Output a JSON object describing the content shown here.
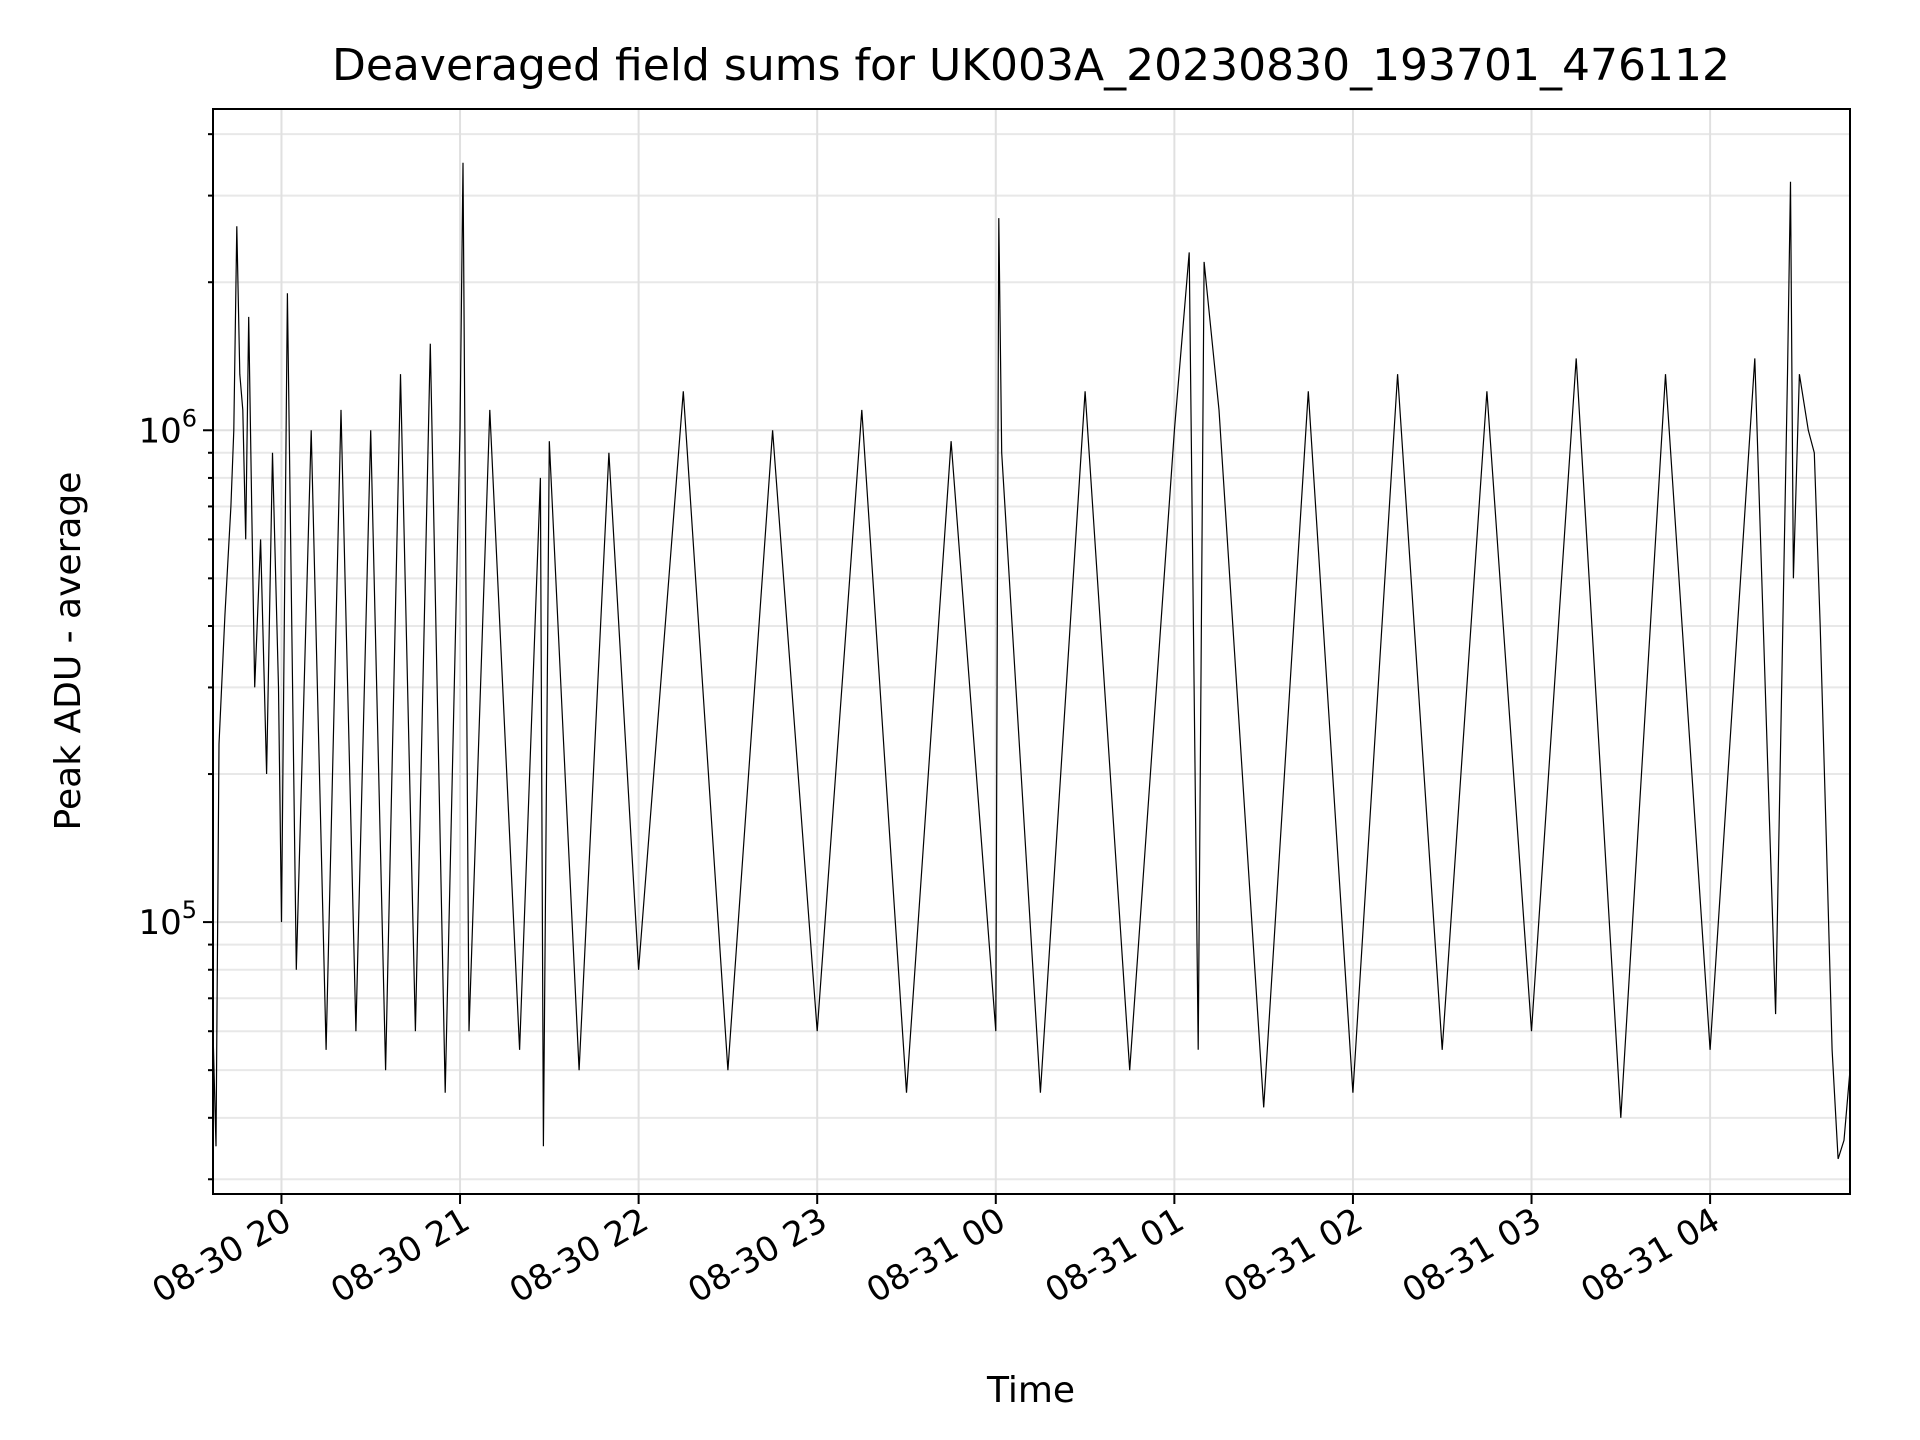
{
  "chart_data": {
    "type": "line",
    "title": "Deaveraged field sums for UK003A_20230830_193701_476112",
    "xlabel": "Time",
    "ylabel": "Peak ADU - average",
    "y_scale": "log",
    "ylim": [
      28000,
      4500000
    ],
    "xlim": [
      "2023-08-30T19:37:00",
      "2023-08-31T04:47:00"
    ],
    "grid": true,
    "x_ticks": [
      {
        "value": "2023-08-30T20:00:00",
        "label": "08-30 20"
      },
      {
        "value": "2023-08-30T21:00:00",
        "label": "08-30 21"
      },
      {
        "value": "2023-08-30T22:00:00",
        "label": "08-30 22"
      },
      {
        "value": "2023-08-30T23:00:00",
        "label": "08-30 23"
      },
      {
        "value": "2023-08-31T00:00:00",
        "label": "08-31 00"
      },
      {
        "value": "2023-08-31T01:00:00",
        "label": "08-31 01"
      },
      {
        "value": "2023-08-31T02:00:00",
        "label": "08-31 02"
      },
      {
        "value": "2023-08-31T03:00:00",
        "label": "08-31 03"
      },
      {
        "value": "2023-08-31T04:00:00",
        "label": "08-31 04"
      }
    ],
    "y_ticks": [
      {
        "value": 100000,
        "base": "10",
        "exp": "5"
      },
      {
        "value": 1000000,
        "base": "10",
        "exp": "6"
      }
    ],
    "series": [
      {
        "color": "#000000",
        "x": [
          "2023-08-30T19:37:00",
          "2023-08-30T19:38:00",
          "2023-08-30T19:39:00",
          "2023-08-30T19:41:00",
          "2023-08-30T19:43:00",
          "2023-08-30T19:44:00",
          "2023-08-30T19:45:00",
          "2023-08-30T19:46:00",
          "2023-08-30T19:47:00",
          "2023-08-30T19:48:00",
          "2023-08-30T19:49:00",
          "2023-08-30T19:50:00",
          "2023-08-30T19:51:00",
          "2023-08-30T19:53:00",
          "2023-08-30T19:55:00",
          "2023-08-30T19:57:00",
          "2023-08-30T19:59:00",
          "2023-08-30T20:00:00",
          "2023-08-30T20:02:00",
          "2023-08-30T20:05:00",
          "2023-08-30T20:10:00",
          "2023-08-30T20:15:00",
          "2023-08-30T20:20:00",
          "2023-08-30T20:25:00",
          "2023-08-30T20:30:00",
          "2023-08-30T20:35:00",
          "2023-08-30T20:40:00",
          "2023-08-30T20:45:00",
          "2023-08-30T20:50:00",
          "2023-08-30T20:55:00",
          "2023-08-30T21:00:00",
          "2023-08-30T21:01:00",
          "2023-08-30T21:03:00",
          "2023-08-30T21:10:00",
          "2023-08-30T21:20:00",
          "2023-08-30T21:27:00",
          "2023-08-30T21:28:00",
          "2023-08-30T21:30:00",
          "2023-08-30T21:40:00",
          "2023-08-30T21:50:00",
          "2023-08-30T22:00:00",
          "2023-08-30T22:15:00",
          "2023-08-30T22:30:00",
          "2023-08-30T22:45:00",
          "2023-08-30T23:00:00",
          "2023-08-30T23:15:00",
          "2023-08-30T23:30:00",
          "2023-08-30T23:45:00",
          "2023-08-31T00:00:00",
          "2023-08-31T00:01:00",
          "2023-08-31T00:02:00",
          "2023-08-31T00:15:00",
          "2023-08-31T00:30:00",
          "2023-08-31T00:45:00",
          "2023-08-31T01:00:00",
          "2023-08-31T01:05:00",
          "2023-08-31T01:08:00",
          "2023-08-31T01:10:00",
          "2023-08-31T01:15:00",
          "2023-08-31T01:30:00",
          "2023-08-31T01:45:00",
          "2023-08-31T02:00:00",
          "2023-08-31T02:15:00",
          "2023-08-31T02:30:00",
          "2023-08-31T02:45:00",
          "2023-08-31T03:00:00",
          "2023-08-31T03:15:00",
          "2023-08-31T03:30:00",
          "2023-08-31T03:45:00",
          "2023-08-31T04:00:00",
          "2023-08-31T04:15:00",
          "2023-08-31T04:22:00",
          "2023-08-31T04:26:00",
          "2023-08-31T04:27:00",
          "2023-08-31T04:28:00",
          "2023-08-31T04:30:00",
          "2023-08-31T04:33:00",
          "2023-08-31T04:35:00",
          "2023-08-31T04:37:00",
          "2023-08-31T04:39:00",
          "2023-08-31T04:41:00",
          "2023-08-31T04:43:00",
          "2023-08-31T04:45:00",
          "2023-08-31T04:47:00"
        ],
        "y": [
          60000,
          35000,
          230000,
          420000,
          700000,
          1000000,
          2600000,
          1300000,
          1100000,
          600000,
          1700000,
          700000,
          300000,
          600000,
          200000,
          900000,
          300000,
          100000,
          1900000,
          80000,
          1000000,
          55000,
          1100000,
          60000,
          1000000,
          50000,
          1300000,
          60000,
          1500000,
          45000,
          1000000,
          3500000,
          60000,
          1100000,
          55000,
          800000,
          35000,
          950000,
          50000,
          900000,
          80000,
          1200000,
          50000,
          1000000,
          60000,
          1100000,
          45000,
          950000,
          60000,
          2700000,
          900000,
          45000,
          1200000,
          50000,
          1000000,
          2300000,
          55000,
          2200000,
          1100000,
          42000,
          1200000,
          45000,
          1300000,
          55000,
          1200000,
          60000,
          1400000,
          40000,
          1300000,
          55000,
          1400000,
          65000,
          1300000,
          3200000,
          500000,
          1300000,
          1000000,
          900000,
          400000,
          150000,
          55000,
          33000,
          36000,
          50000
        ]
      }
    ]
  }
}
